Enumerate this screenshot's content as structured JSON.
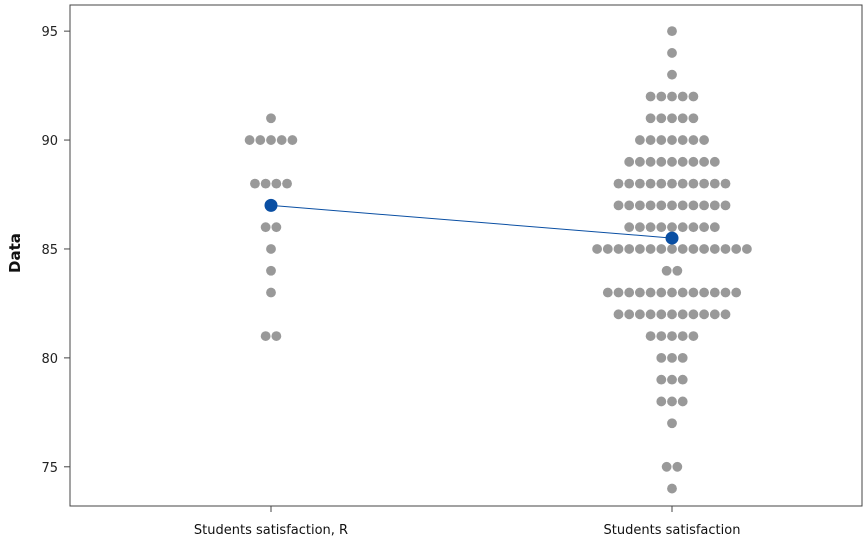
{
  "chart_data": {
    "type": "scatter",
    "subtype": "individual-value-plot",
    "ylabel": "Data",
    "ylim": [
      73.2,
      96.2
    ],
    "yticks": [
      75,
      80,
      85,
      90,
      95
    ],
    "grid": false,
    "categories": [
      "Students satisfaction, R",
      "Students satisfaction"
    ],
    "series": [
      {
        "values": [
          91,
          90,
          90,
          90,
          90,
          90,
          88,
          88,
          88,
          88,
          86,
          86,
          85,
          84,
          83,
          81,
          81
        ]
      },
      {
        "values": [
          95,
          94,
          93,
          92,
          92,
          92,
          92,
          92,
          91,
          91,
          91,
          91,
          91,
          90,
          90,
          90,
          90,
          90,
          90,
          90,
          89,
          89,
          89,
          89,
          89,
          89,
          89,
          89,
          89,
          88,
          88,
          88,
          88,
          88,
          88,
          88,
          88,
          88,
          88,
          88,
          87,
          87,
          87,
          87,
          87,
          87,
          87,
          87,
          87,
          87,
          87,
          86,
          86,
          86,
          86,
          86,
          86,
          86,
          86,
          86,
          85,
          85,
          85,
          85,
          85,
          85,
          85,
          85,
          85,
          85,
          85,
          85,
          85,
          85,
          85,
          84,
          84,
          83,
          83,
          83,
          83,
          83,
          83,
          83,
          83,
          83,
          83,
          83,
          83,
          83,
          82,
          82,
          82,
          82,
          82,
          82,
          82,
          82,
          82,
          82,
          82,
          81,
          81,
          81,
          81,
          81,
          80,
          80,
          80,
          79,
          79,
          79,
          78,
          78,
          78,
          77,
          75,
          75,
          74
        ]
      }
    ],
    "means": [
      87.0,
      85.5
    ],
    "colors": {
      "points": "#999999",
      "mean_points": "#0a4fa3",
      "mean_line": "#0a4fa3",
      "axis": "#444444"
    }
  }
}
